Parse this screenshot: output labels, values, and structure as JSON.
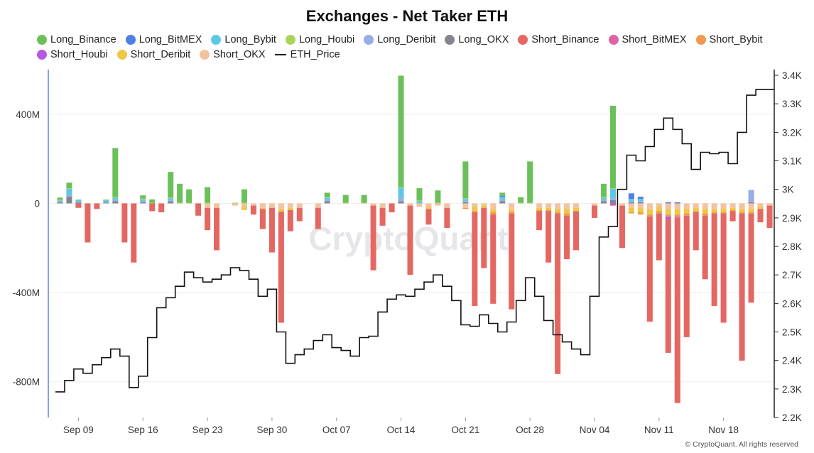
{
  "title": "Exchanges - Net Taker ETH",
  "footer": "© CryptoQuant. All rights reserved",
  "watermark": "CryptoQuant",
  "legend": [
    {
      "name": "Long_Binance",
      "color": "#6cc05a",
      "kind": "dot"
    },
    {
      "name": "Long_BitMEX",
      "color": "#4f7fe6",
      "kind": "dot"
    },
    {
      "name": "Long_Bybit",
      "color": "#5ec7e4",
      "kind": "dot"
    },
    {
      "name": "Long_Houbi",
      "color": "#a8d65a",
      "kind": "dot"
    },
    {
      "name": "Long_Deribit",
      "color": "#98ade6",
      "kind": "dot"
    },
    {
      "name": "Long_OKX",
      "color": "#85858f",
      "kind": "dot"
    },
    {
      "name": "Short_Binance",
      "color": "#e46762",
      "kind": "dot"
    },
    {
      "name": "Short_BitMEX",
      "color": "#e062a6",
      "kind": "dot"
    },
    {
      "name": "Short_Bybit",
      "color": "#ef9850",
      "kind": "dot"
    },
    {
      "name": "Short_Houbi",
      "color": "#b758e3",
      "kind": "dot"
    },
    {
      "name": "Short_Deribit",
      "color": "#eec746",
      "kind": "dot"
    },
    {
      "name": "Short_OKX",
      "color": "#f3c2a0",
      "kind": "dot"
    },
    {
      "name": "ETH_Price",
      "color": "#000000",
      "kind": "line"
    }
  ],
  "chart_data": {
    "type": "bar",
    "title": "Exchanges - Net Taker ETH",
    "x_ticks": [
      "Sep 09",
      "Sep 16",
      "Sep 23",
      "Sep 30",
      "Oct 07",
      "Oct 14",
      "Oct 21",
      "Oct 28",
      "Nov 04",
      "Nov 11",
      "Nov 18"
    ],
    "x_tick_index": [
      2,
      9,
      16,
      23,
      30,
      37,
      44,
      51,
      58,
      65,
      72
    ],
    "y_left_ticks": [
      "400M",
      "0",
      "-400M",
      "-800M"
    ],
    "y_left_tick_values": [
      400,
      0,
      -400,
      -800
    ],
    "y_left_range": [
      -960,
      600
    ],
    "y_left_unit": "M",
    "y_right_ticks": [
      "3.4K",
      "3.3K",
      "3.2K",
      "3.1K",
      "3K",
      "2.9K",
      "2.8K",
      "2.7K",
      "2.6K",
      "2.5K",
      "2.4K",
      "2.3K",
      "2.2K"
    ],
    "y_right_tick_values": [
      3400,
      3300,
      3200,
      3100,
      3000,
      2900,
      2800,
      2700,
      2600,
      2500,
      2400,
      2300,
      2200
    ],
    "y_right_range": [
      2200,
      3420
    ],
    "grid": true,
    "legend_position": "top",
    "long_binance": [
      10,
      25,
      3,
      0,
      0,
      3,
      220,
      0,
      0,
      15,
      15,
      0,
      115,
      85,
      60,
      0,
      70,
      0,
      0,
      0,
      60,
      0,
      0,
      0,
      0,
      0,
      0,
      0,
      0,
      20,
      0,
      35,
      0,
      35,
      0,
      0,
      0,
      500,
      0,
      55,
      0,
      55,
      0,
      0,
      165,
      0,
      0,
      0,
      10,
      0,
      25,
      185,
      0,
      0,
      0,
      0,
      0,
      0,
      0,
      60,
      370,
      0,
      0,
      0,
      0,
      0,
      0,
      0,
      0,
      0,
      0,
      0,
      0,
      0,
      0,
      0,
      0,
      0
    ],
    "long_bitmex": [
      0,
      0,
      0,
      0,
      0,
      0,
      0,
      0,
      0,
      0,
      0,
      0,
      0,
      0,
      0,
      0,
      0,
      0,
      0,
      0,
      0,
      0,
      0,
      0,
      0,
      0,
      0,
      0,
      0,
      0,
      0,
      0,
      0,
      0,
      0,
      0,
      0,
      0,
      0,
      0,
      0,
      0,
      0,
      0,
      0,
      0,
      0,
      0,
      5,
      0,
      0,
      0,
      0,
      0,
      0,
      0,
      0,
      0,
      0,
      0,
      0,
      0,
      25,
      10,
      0,
      0,
      5,
      5,
      0,
      0,
      0,
      0,
      0,
      0,
      0,
      0,
      0,
      0
    ],
    "long_bybit": [
      5,
      30,
      8,
      0,
      0,
      8,
      10,
      0,
      0,
      10,
      0,
      0,
      10,
      0,
      0,
      0,
      0,
      0,
      0,
      0,
      0,
      0,
      0,
      0,
      0,
      0,
      0,
      0,
      0,
      10,
      0,
      0,
      0,
      0,
      0,
      0,
      0,
      45,
      0,
      10,
      0,
      0,
      0,
      0,
      10,
      0,
      0,
      0,
      15,
      0,
      0,
      0,
      0,
      0,
      0,
      0,
      0,
      0,
      0,
      10,
      40,
      0,
      10,
      10,
      0,
      0,
      0,
      0,
      0,
      0,
      0,
      0,
      0,
      0,
      0,
      0,
      0,
      0
    ],
    "long_houbi": [
      3,
      3,
      0,
      0,
      0,
      0,
      3,
      0,
      0,
      3,
      3,
      0,
      3,
      3,
      3,
      0,
      3,
      0,
      0,
      3,
      3,
      0,
      0,
      0,
      0,
      0,
      0,
      0,
      0,
      3,
      0,
      3,
      0,
      3,
      0,
      0,
      0,
      3,
      0,
      3,
      0,
      3,
      0,
      0,
      3,
      0,
      0,
      0,
      3,
      0,
      3,
      3,
      0,
      0,
      0,
      0,
      0,
      0,
      0,
      3,
      3,
      0,
      0,
      0,
      0,
      0,
      0,
      0,
      0,
      0,
      0,
      0,
      0,
      0,
      0,
      0,
      0,
      0
    ],
    "long_deribit": [
      3,
      5,
      3,
      0,
      0,
      3,
      5,
      0,
      0,
      3,
      0,
      0,
      3,
      0,
      0,
      0,
      0,
      0,
      0,
      0,
      0,
      0,
      0,
      0,
      0,
      0,
      0,
      0,
      0,
      5,
      0,
      0,
      0,
      0,
      0,
      0,
      0,
      15,
      0,
      0,
      0,
      0,
      0,
      0,
      5,
      0,
      0,
      0,
      5,
      0,
      0,
      0,
      0,
      0,
      0,
      0,
      0,
      0,
      0,
      5,
      10,
      0,
      5,
      5,
      0,
      0,
      0,
      0,
      0,
      0,
      0,
      0,
      0,
      0,
      0,
      55,
      0,
      0
    ],
    "long_okx": [
      5,
      30,
      3,
      0,
      0,
      3,
      10,
      0,
      0,
      5,
      0,
      0,
      10,
      0,
      0,
      0,
      0,
      0,
      0,
      0,
      0,
      0,
      0,
      0,
      0,
      0,
      0,
      0,
      0,
      10,
      0,
      0,
      0,
      0,
      0,
      0,
      0,
      10,
      0,
      0,
      0,
      0,
      0,
      0,
      5,
      0,
      0,
      0,
      10,
      0,
      0,
      0,
      0,
      0,
      0,
      0,
      0,
      0,
      0,
      10,
      15,
      0,
      5,
      5,
      0,
      0,
      0,
      0,
      0,
      0,
      0,
      0,
      0,
      0,
      0,
      5,
      0,
      0
    ],
    "short_binance": [
      0,
      0,
      -20,
      -175,
      -25,
      0,
      0,
      -175,
      -265,
      0,
      -35,
      -40,
      0,
      0,
      0,
      -55,
      -100,
      -190,
      0,
      0,
      0,
      -40,
      -90,
      -200,
      -495,
      -95,
      -60,
      0,
      -95,
      0,
      0,
      0,
      0,
      0,
      -290,
      -80,
      -40,
      0,
      -310,
      0,
      -70,
      0,
      -90,
      0,
      0,
      -420,
      -270,
      -400,
      0,
      -430,
      0,
      0,
      -85,
      -230,
      -720,
      -195,
      -175,
      0,
      -55,
      0,
      0,
      -190,
      0,
      0,
      -470,
      -210,
      -600,
      -830,
      -545,
      -170,
      -285,
      -415,
      -490,
      -45,
      -660,
      -400,
      -60,
      -100
    ],
    "short_bitmex": [
      0,
      0,
      0,
      0,
      0,
      0,
      0,
      0,
      0,
      0,
      0,
      0,
      0,
      0,
      0,
      0,
      0,
      0,
      0,
      0,
      0,
      0,
      0,
      0,
      0,
      0,
      0,
      0,
      0,
      0,
      0,
      0,
      0,
      0,
      0,
      0,
      0,
      0,
      0,
      0,
      0,
      0,
      0,
      0,
      0,
      0,
      0,
      0,
      0,
      0,
      0,
      0,
      0,
      0,
      0,
      0,
      0,
      0,
      0,
      0,
      -5,
      0,
      0,
      0,
      0,
      0,
      0,
      -5,
      0,
      0,
      0,
      0,
      0,
      0,
      0,
      0,
      0,
      0
    ],
    "short_bybit": [
      0,
      0,
      0,
      0,
      0,
      0,
      0,
      0,
      0,
      0,
      0,
      0,
      0,
      0,
      0,
      0,
      0,
      0,
      0,
      0,
      0,
      0,
      0,
      0,
      -5,
      0,
      0,
      0,
      0,
      0,
      0,
      0,
      0,
      0,
      0,
      0,
      0,
      0,
      0,
      0,
      0,
      0,
      0,
      0,
      -5,
      -5,
      0,
      -10,
      0,
      -5,
      0,
      0,
      -5,
      -5,
      -5,
      -10,
      0,
      0,
      0,
      0,
      0,
      0,
      -5,
      -10,
      -10,
      -10,
      -10,
      -10,
      -10,
      -5,
      -10,
      -5,
      -5,
      -5,
      -5,
      -5,
      0,
      0
    ],
    "short_houbi": [
      0,
      0,
      0,
      0,
      0,
      0,
      0,
      0,
      0,
      0,
      0,
      0,
      0,
      0,
      0,
      0,
      0,
      0,
      0,
      0,
      0,
      0,
      0,
      0,
      0,
      0,
      0,
      0,
      0,
      0,
      0,
      0,
      0,
      0,
      0,
      0,
      0,
      0,
      0,
      0,
      0,
      0,
      0,
      0,
      0,
      0,
      0,
      0,
      0,
      0,
      0,
      0,
      0,
      0,
      0,
      0,
      0,
      0,
      0,
      0,
      -5,
      0,
      0,
      0,
      0,
      0,
      -10,
      0,
      0,
      0,
      0,
      0,
      0,
      0,
      0,
      0,
      0,
      0
    ],
    "short_deribit": [
      0,
      0,
      0,
      0,
      0,
      0,
      0,
      0,
      0,
      0,
      0,
      0,
      0,
      0,
      0,
      0,
      0,
      0,
      0,
      0,
      -15,
      0,
      -5,
      0,
      -10,
      -10,
      0,
      0,
      0,
      0,
      0,
      0,
      0,
      0,
      0,
      0,
      0,
      0,
      0,
      0,
      -10,
      0,
      0,
      0,
      0,
      -20,
      -10,
      -15,
      0,
      -10,
      0,
      0,
      -10,
      -10,
      -15,
      -20,
      -15,
      0,
      0,
      0,
      0,
      0,
      -20,
      -20,
      -25,
      -20,
      -25,
      -25,
      -20,
      -15,
      -20,
      -15,
      -15,
      -10,
      -15,
      -15,
      -10,
      0
    ],
    "short_okx": [
      0,
      0,
      0,
      0,
      0,
      0,
      0,
      0,
      0,
      0,
      0,
      0,
      0,
      0,
      0,
      0,
      -20,
      -20,
      0,
      -10,
      -15,
      -10,
      -20,
      -20,
      -25,
      -20,
      -20,
      0,
      -20,
      0,
      0,
      0,
      0,
      0,
      -10,
      -20,
      0,
      0,
      -10,
      -15,
      -15,
      -10,
      -20,
      0,
      -20,
      -15,
      -10,
      -25,
      0,
      -30,
      0,
      0,
      -20,
      -20,
      -25,
      -25,
      -20,
      0,
      -10,
      0,
      0,
      -10,
      -20,
      -20,
      -25,
      -15,
      -25,
      -25,
      -25,
      -20,
      -25,
      -25,
      -25,
      -20,
      -25,
      -25,
      -15,
      -10
    ],
    "eth_price": [
      2290,
      2330,
      2370,
      2355,
      2385,
      2410,
      2440,
      2415,
      2305,
      2345,
      2480,
      2585,
      2620,
      2660,
      2710,
      2690,
      2675,
      2685,
      2700,
      2725,
      2715,
      2685,
      2625,
      2650,
      2500,
      2390,
      2420,
      2440,
      2470,
      2490,
      2445,
      2435,
      2415,
      2480,
      2485,
      2570,
      2615,
      2630,
      2625,
      2650,
      2675,
      2700,
      2660,
      2610,
      2525,
      2520,
      2560,
      2530,
      2500,
      2535,
      2610,
      2690,
      2625,
      2540,
      2490,
      2465,
      2440,
      2420,
      2625,
      2833,
      2870,
      3000,
      3120,
      3100,
      3150,
      3210,
      3250,
      3210,
      3160,
      3070,
      3130,
      3125,
      3130,
      3090,
      3200,
      3330,
      3350,
      3350
    ]
  }
}
